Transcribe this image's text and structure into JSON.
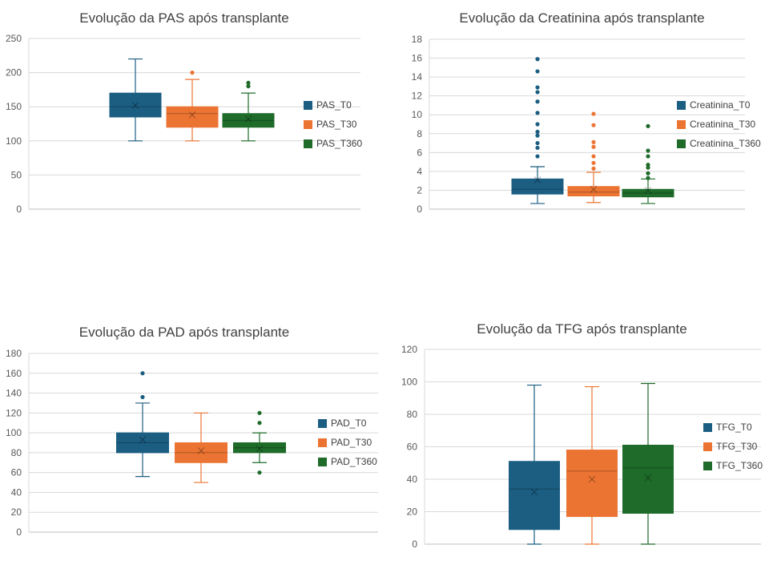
{
  "colors": {
    "T0": "#1b5e82",
    "T30": "#ec7433",
    "T360": "#1e6b2a"
  },
  "chart_data": [
    {
      "type": "boxplot",
      "title": "Evolução da PAS após transplante",
      "ylim": [
        0,
        250
      ],
      "yticks": [
        "0",
        "50",
        "100",
        "150",
        "200",
        "250"
      ],
      "grid": true,
      "legend_position": "right",
      "series": [
        {
          "name": "PAS_T0",
          "color": "#1b5e82",
          "min": 100,
          "q1": 135,
          "median": 150,
          "q3": 170,
          "max": 220,
          "mean": 152,
          "outliers": []
        },
        {
          "name": "PAS_T30",
          "color": "#ec7433",
          "min": 100,
          "q1": 120,
          "median": 140,
          "q3": 150,
          "max": 190,
          "mean": 138,
          "outliers": [
            200
          ]
        },
        {
          "name": "PAS_T360",
          "color": "#1e6b2a",
          "min": 100,
          "q1": 120,
          "median": 130,
          "q3": 140,
          "max": 170,
          "mean": 132,
          "outliers": [
            180,
            185
          ]
        }
      ]
    },
    {
      "type": "boxplot",
      "title": "Evolução da Creatinina após transplante",
      "ylim": [
        0,
        18
      ],
      "yticks": [
        "0",
        "2",
        "4",
        "6",
        "8",
        "10",
        "12",
        "14",
        "16",
        "18"
      ],
      "grid": true,
      "legend_position": "right",
      "series": [
        {
          "name": "Creatinina_T0",
          "color": "#1b5e82",
          "min": 0.6,
          "q1": 1.6,
          "median": 2.1,
          "q3": 3.2,
          "max": 4.5,
          "mean": 3.1,
          "outliers": [
            5.6,
            6.5,
            7.0,
            7.8,
            8.2,
            9.0,
            10.2,
            11.4,
            12.4,
            12.9,
            14.6,
            15.9
          ]
        },
        {
          "name": "Creatinina_T30",
          "color": "#ec7433",
          "min": 0.7,
          "q1": 1.4,
          "median": 1.8,
          "q3": 2.4,
          "max": 3.9,
          "mean": 2.1,
          "outliers": [
            4.3,
            4.9,
            5.6,
            6.6,
            7.1,
            8.9,
            10.1
          ]
        },
        {
          "name": "Creatinina_T360",
          "color": "#1e6b2a",
          "min": 0.6,
          "q1": 1.3,
          "median": 1.7,
          "q3": 2.1,
          "max": 3.2,
          "mean": 2.0,
          "outliers": [
            3.3,
            3.8,
            4.4,
            4.7,
            5.6,
            6.2,
            8.8
          ]
        }
      ]
    },
    {
      "type": "boxplot",
      "title": "Evolução da PAD após transplante",
      "ylim": [
        0,
        180
      ],
      "yticks": [
        "0",
        "20",
        "40",
        "60",
        "80",
        "100",
        "120",
        "140",
        "160",
        "180"
      ],
      "grid": true,
      "legend_position": "right",
      "series": [
        {
          "name": "PAD_T0",
          "color": "#1b5e82",
          "min": 56,
          "q1": 80,
          "median": 90,
          "q3": 100,
          "max": 130,
          "mean": 93,
          "outliers": [
            136,
            160
          ]
        },
        {
          "name": "PAD_T30",
          "color": "#ec7433",
          "min": 50,
          "q1": 70,
          "median": 80,
          "q3": 90,
          "max": 120,
          "mean": 82,
          "outliers": []
        },
        {
          "name": "PAD_T360",
          "color": "#1e6b2a",
          "min": 70,
          "q1": 80,
          "median": 85,
          "q3": 90,
          "max": 100,
          "mean": 84,
          "outliers": [
            60,
            110,
            120
          ]
        }
      ]
    },
    {
      "type": "boxplot",
      "title": "Evolução da TFG após transplante",
      "ylim": [
        0,
        120
      ],
      "yticks": [
        "0",
        "20",
        "40",
        "60",
        "80",
        "100",
        "120"
      ],
      "grid": true,
      "legend_position": "right",
      "series": [
        {
          "name": "TFG_T0",
          "color": "#1b5e82",
          "min": 0,
          "q1": 9,
          "median": 34,
          "q3": 51,
          "max": 98,
          "mean": 32,
          "outliers": []
        },
        {
          "name": "TFG_T30",
          "color": "#ec7433",
          "min": 0,
          "q1": 17,
          "median": 45,
          "q3": 58,
          "max": 97,
          "mean": 40,
          "outliers": []
        },
        {
          "name": "TFG_T360",
          "color": "#1e6b2a",
          "min": 0,
          "q1": 19,
          "median": 47,
          "q3": 61,
          "max": 99,
          "mean": 41,
          "outliers": []
        }
      ]
    }
  ]
}
